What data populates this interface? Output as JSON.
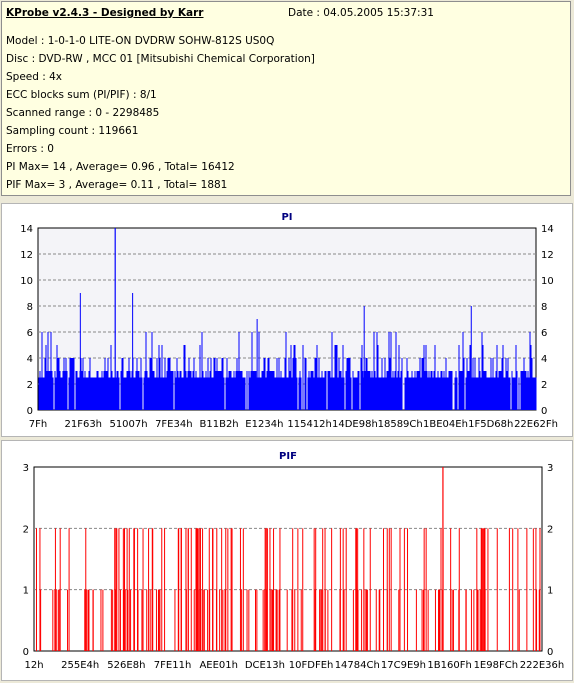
{
  "header": {
    "title": "KProbe v2.4.3 - Designed by Karr",
    "date": "Date : 04.05.2005 15:37:31",
    "lines": [
      "Model : 1-0-1-0 LITE-ON DVDRW SOHW-812S  US0Q",
      "Disc : DVD-RW , MCC 01 [Mitsubishi Chemical Corporation]",
      "Speed : 4x",
      "ECC blocks sum (PI/PIF) : 8/1",
      "Scanned range : 0 - 2298485",
      "Sampling count : 119661",
      "Errors : 0",
      "PI Max= 14 , Average= 0.96 , Total= 16412",
      "PIF Max= 3 , Average= 0.11 , Total= 1881"
    ]
  },
  "chart_data": [
    {
      "type": "bar",
      "title": "PI",
      "ylim": [
        0,
        14
      ],
      "yticks": [
        0,
        2,
        4,
        6,
        8,
        10,
        12,
        14
      ],
      "xticks": [
        "7Fh",
        "21F63h",
        "51007h",
        "7FE34h",
        "B11B2h",
        "E1234h",
        "115412h",
        "14DE98h",
        "18589Ch",
        "1BE04Eh",
        "1F5D68h",
        "22E62Fh"
      ],
      "series_color": "#0000ff",
      "baseline": 2,
      "max": 14,
      "max_position": 0.155,
      "grid": true
    },
    {
      "type": "bar",
      "title": "PIF",
      "ylim": [
        0,
        3
      ],
      "yticks": [
        0,
        1,
        2,
        3
      ],
      "xticks": [
        "12h",
        "255E4h",
        "526E8h",
        "7FE11h",
        "AEE01h",
        "DCE13h",
        "10FDFEh",
        "14784Ch",
        "17C9E9h",
        "1B160Fh",
        "1E98FCh",
        "222E36h"
      ],
      "series_color": "#ff0000",
      "max": 3,
      "max_position": 0.805,
      "grid": true
    }
  ]
}
